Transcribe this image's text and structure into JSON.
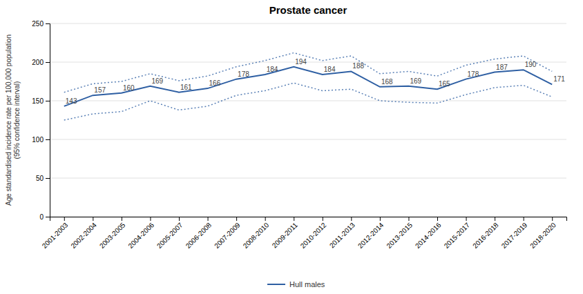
{
  "chart_data": {
    "type": "line",
    "title": "Prostate cancer",
    "ylabel": "Age standardised incidence rate per 100,000 population\n(95% confidence interval)",
    "categories": [
      "2001-2003",
      "2002-2004",
      "2003-2005",
      "2004-2006",
      "2005-2007",
      "2006-2008",
      "2007-2009",
      "2008-2010",
      "2009-2011",
      "2010-2012",
      "2011-2013",
      "2012-2014",
      "2013-2015",
      "2014-2016",
      "2015-2017",
      "2016-2018",
      "2017-2019",
      "2018-2020"
    ],
    "series": [
      {
        "name": "Hull males",
        "color": "#2E5FA3",
        "line_style": "solid",
        "values": [
          143,
          157,
          160,
          169,
          161,
          166,
          178,
          184,
          194,
          184,
          188,
          168,
          169,
          165,
          178,
          187,
          190,
          171
        ],
        "ci_lower": [
          125,
          133,
          136,
          150,
          138,
          143,
          157,
          163,
          173,
          163,
          165,
          150,
          148,
          147,
          158,
          167,
          170,
          155
        ],
        "ci_upper": [
          161,
          172,
          175,
          185,
          176,
          182,
          194,
          202,
          212,
          202,
          208,
          185,
          188,
          182,
          196,
          204,
          208,
          188
        ]
      }
    ],
    "ylim": [
      0,
      250
    ],
    "yticks": [
      0,
      50,
      100,
      150,
      200,
      250
    ],
    "grid": true,
    "legend": "bottom",
    "data_labels": true
  }
}
